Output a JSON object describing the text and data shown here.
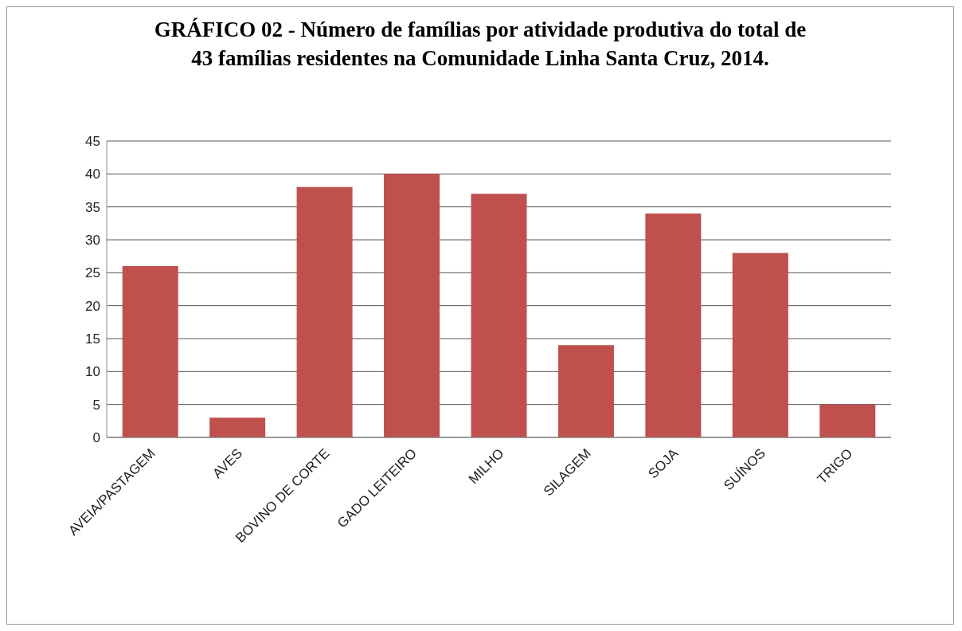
{
  "chart_data": {
    "type": "bar",
    "title": "GRÁFICO 02 - Número de famílias por atividade produtiva do total de 43 famílias residentes na Comunidade Linha Santa Cruz, 2014.",
    "categories": [
      "AVEIA/PASTAGEM",
      "AVES",
      "BOVINO DE CORTE",
      "GADO LEITEIRO",
      "MILHO",
      "SILAGEM",
      "SOJA",
      "SUÍNOS",
      "TRIGO"
    ],
    "values": [
      26,
      3,
      38,
      40,
      37,
      14,
      34,
      28,
      5
    ],
    "color": "#c0504d",
    "ylim": [
      0,
      45
    ],
    "yticks": [
      0,
      5,
      10,
      15,
      20,
      25,
      30,
      35,
      40,
      45
    ],
    "grid": "y"
  }
}
